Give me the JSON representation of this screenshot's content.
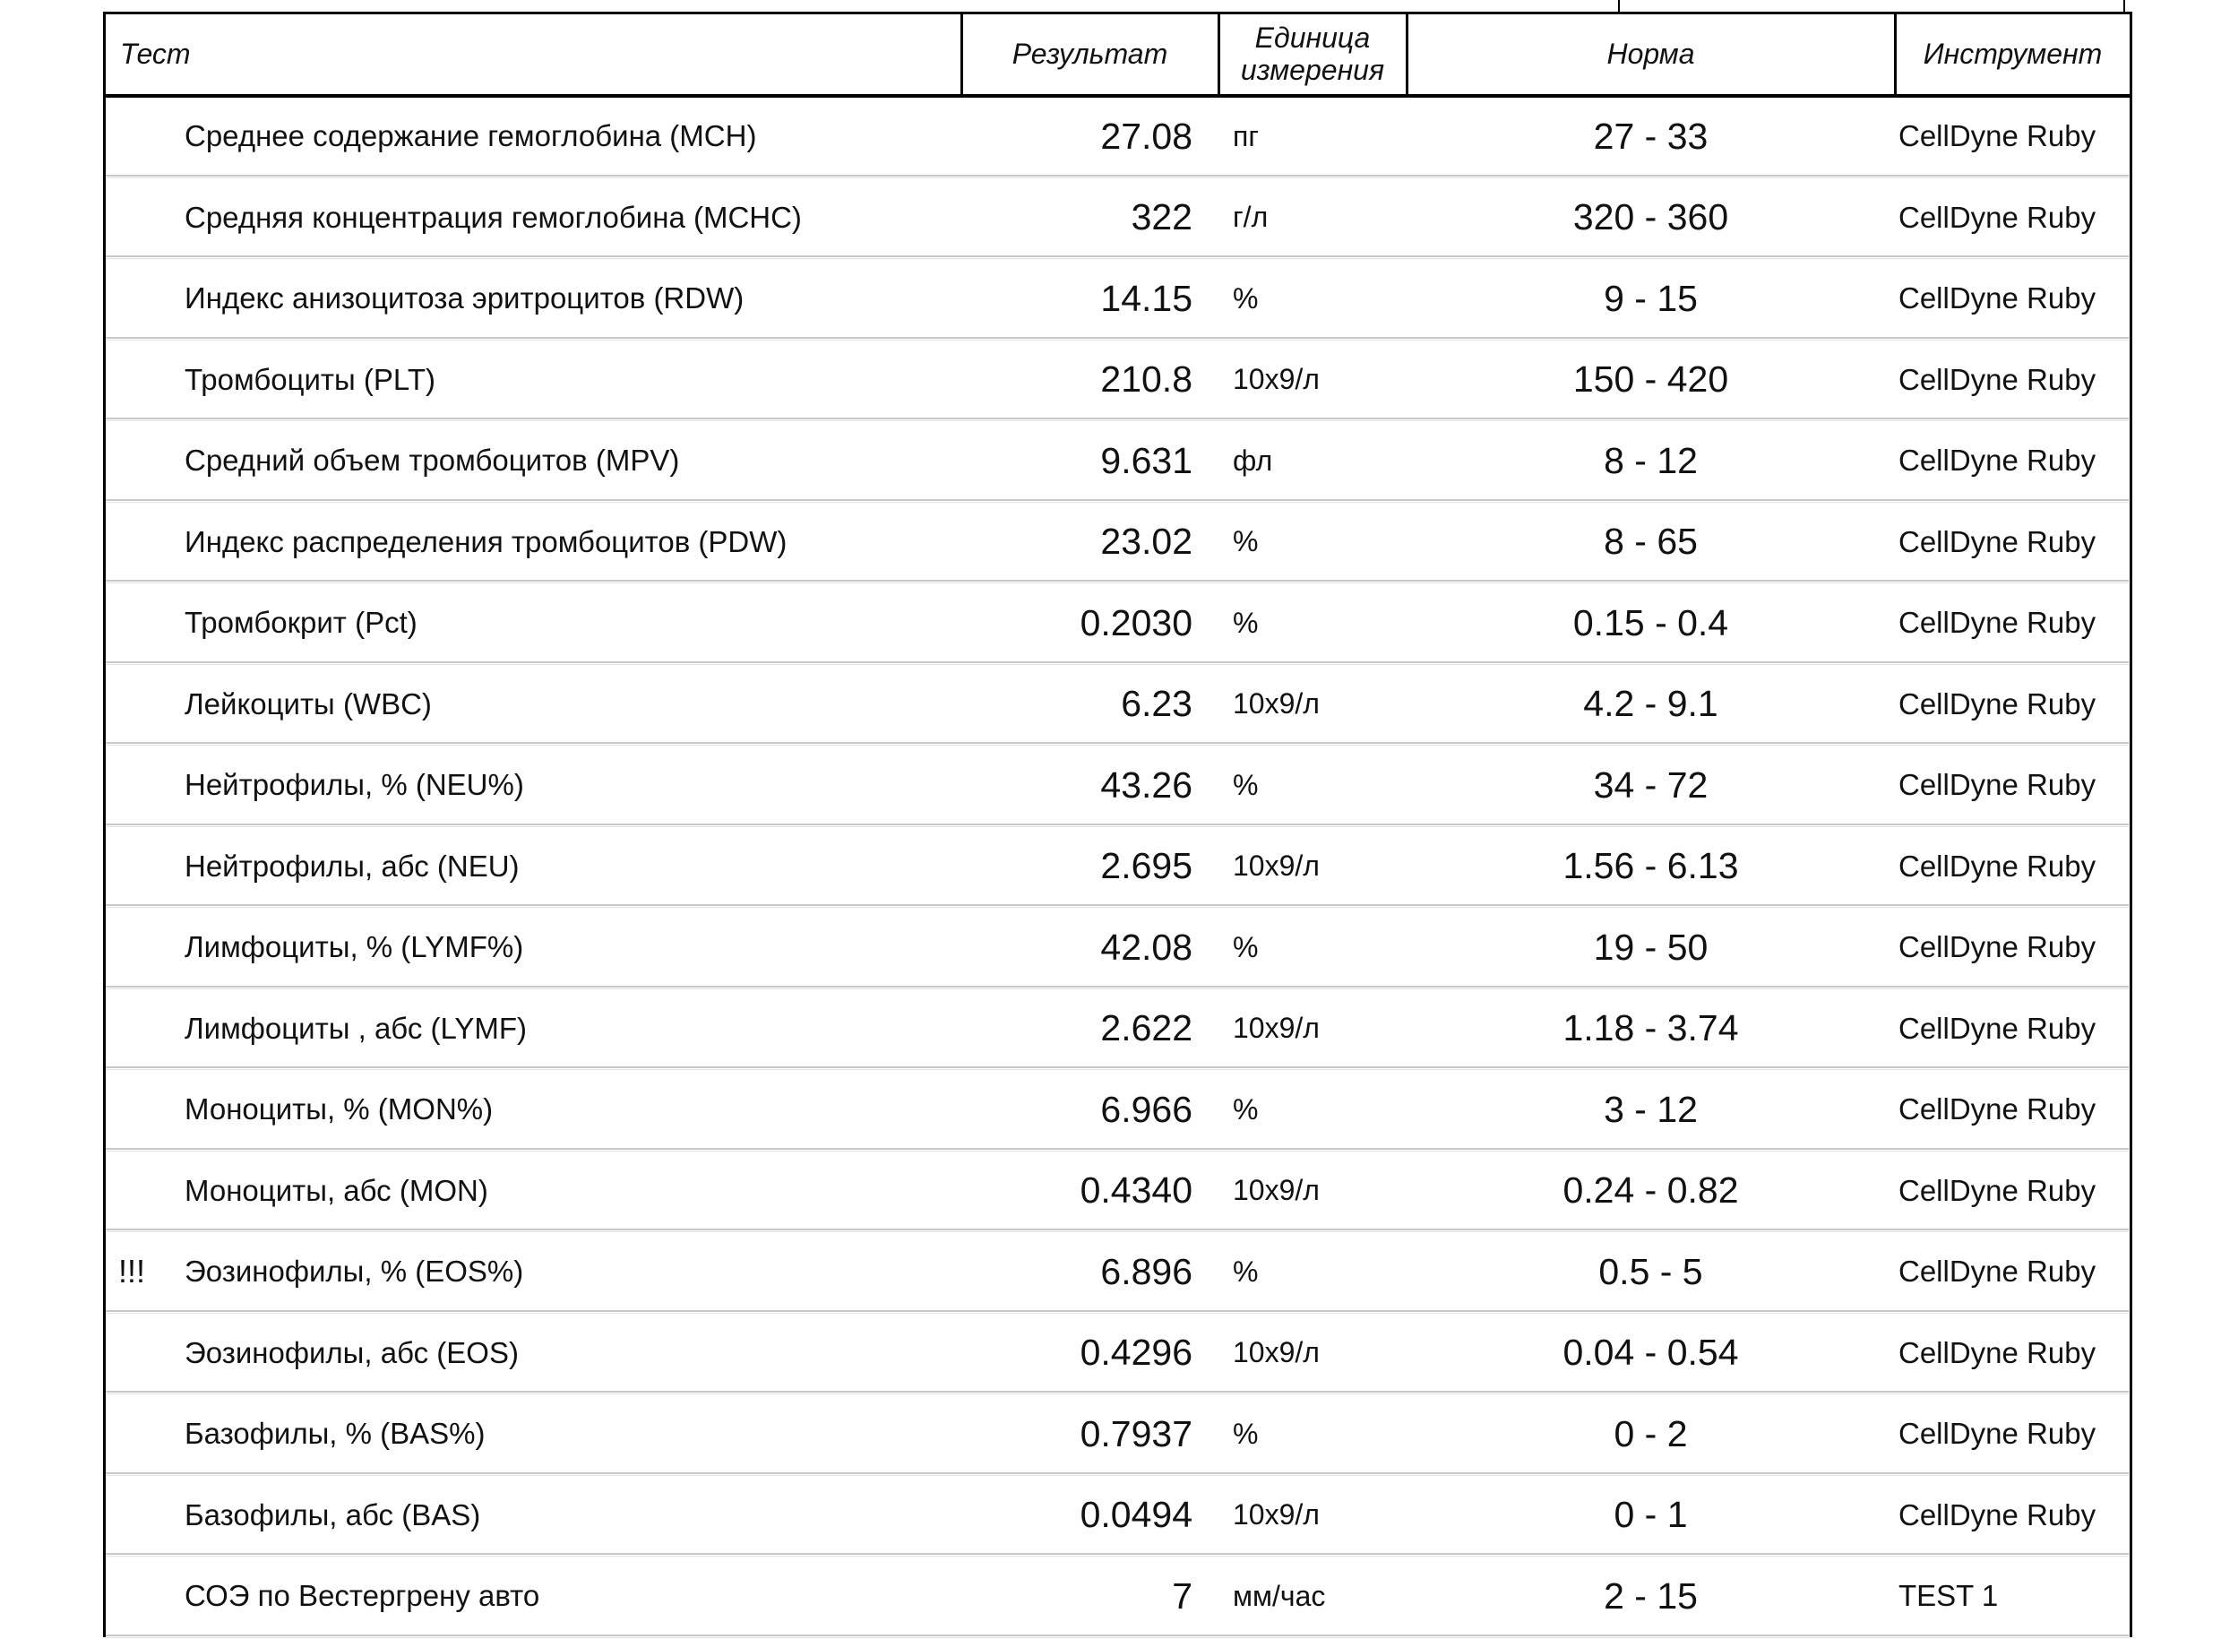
{
  "table": {
    "header": [
      "Тест",
      "Результат",
      "Единица измерения",
      "Норма",
      "Инструмент"
    ],
    "rows": [
      {
        "test": "Среднее содержание гемоглобина (MCH)",
        "result": "27.08",
        "unit": "пг",
        "norm": "27 - 33",
        "instrument": "CellDyne Ruby"
      },
      {
        "test": "Средняя концентрация гемоглобина (MCHC)",
        "result": "322",
        "unit": "г/л",
        "norm": "320 - 360",
        "instrument": "CellDyne Ruby"
      },
      {
        "test": "Индекс анизоцитоза эритроцитов (RDW)",
        "result": "14.15",
        "unit": "%",
        "norm": "9 - 15",
        "instrument": "CellDyne Ruby"
      },
      {
        "test": "Тромбоциты (PLT)",
        "result": "210.8",
        "unit": "10x9/л",
        "norm": "150 - 420",
        "instrument": "CellDyne Ruby"
      },
      {
        "test": "Средний объем тромбоцитов (MPV)",
        "result": "9.631",
        "unit": "фл",
        "norm": "8 - 12",
        "instrument": "CellDyne Ruby"
      },
      {
        "test": "Индекс распределения тромбоцитов (PDW)",
        "result": "23.02",
        "unit": "%",
        "norm": "8 - 65",
        "instrument": "CellDyne Ruby"
      },
      {
        "test": "Тромбокрит (Pct)",
        "result": "0.2030",
        "unit": "%",
        "norm": "0.15 - 0.4",
        "instrument": "CellDyne Ruby"
      },
      {
        "test": "Лейкоциты (WBC)",
        "result": "6.23",
        "unit": "10x9/л",
        "norm": "4.2 - 9.1",
        "instrument": "CellDyne Ruby"
      },
      {
        "test": "Нейтрофилы, % (NEU%)",
        "result": "43.26",
        "unit": "%",
        "norm": "34 - 72",
        "instrument": "CellDyne Ruby"
      },
      {
        "test": "Нейтрофилы, абс (NEU)",
        "result": "2.695",
        "unit": "10x9/л",
        "norm": "1.56 - 6.13",
        "instrument": "CellDyne Ruby"
      },
      {
        "test": "Лимфоциты, % (LYMF%)",
        "result": "42.08",
        "unit": "%",
        "norm": "19 - 50",
        "instrument": "CellDyne Ruby"
      },
      {
        "test": "Лимфоциты , абс (LYMF)",
        "result": "2.622",
        "unit": "10x9/л",
        "norm": "1.18 - 3.74",
        "instrument": "CellDyne Ruby"
      },
      {
        "test": "Моноциты, % (MON%)",
        "result": "6.966",
        "unit": "%",
        "norm": "3 - 12",
        "instrument": "CellDyne Ruby"
      },
      {
        "test": "Моноциты, абс (MON)",
        "result": "0.4340",
        "unit": "10x9/л",
        "norm": "0.24 - 0.82",
        "instrument": "CellDyne Ruby"
      },
      {
        "flag": "!!!",
        "test": "Эозинофилы, % (EOS%)",
        "result": "6.896",
        "unit": "%",
        "norm": "0.5 - 5",
        "instrument": "CellDyne Ruby"
      },
      {
        "test": "Эозинофилы, абс (EOS)",
        "result": "0.4296",
        "unit": "10x9/л",
        "norm": "0.04 - 0.54",
        "instrument": "CellDyne Ruby"
      },
      {
        "test": "Базофилы, % (BAS%)",
        "result": "0.7937",
        "unit": "%",
        "norm": "0 - 2",
        "instrument": "CellDyne Ruby"
      },
      {
        "test": "Базофилы, абс (BAS)",
        "result": "0.0494",
        "unit": "10x9/л",
        "norm": "0 - 1",
        "instrument": "CellDyne Ruby"
      },
      {
        "test": "СОЭ по Вестергрену авто",
        "result": "7",
        "unit": "мм/час",
        "norm": "2 - 15",
        "instrument": "TEST 1"
      }
    ]
  }
}
